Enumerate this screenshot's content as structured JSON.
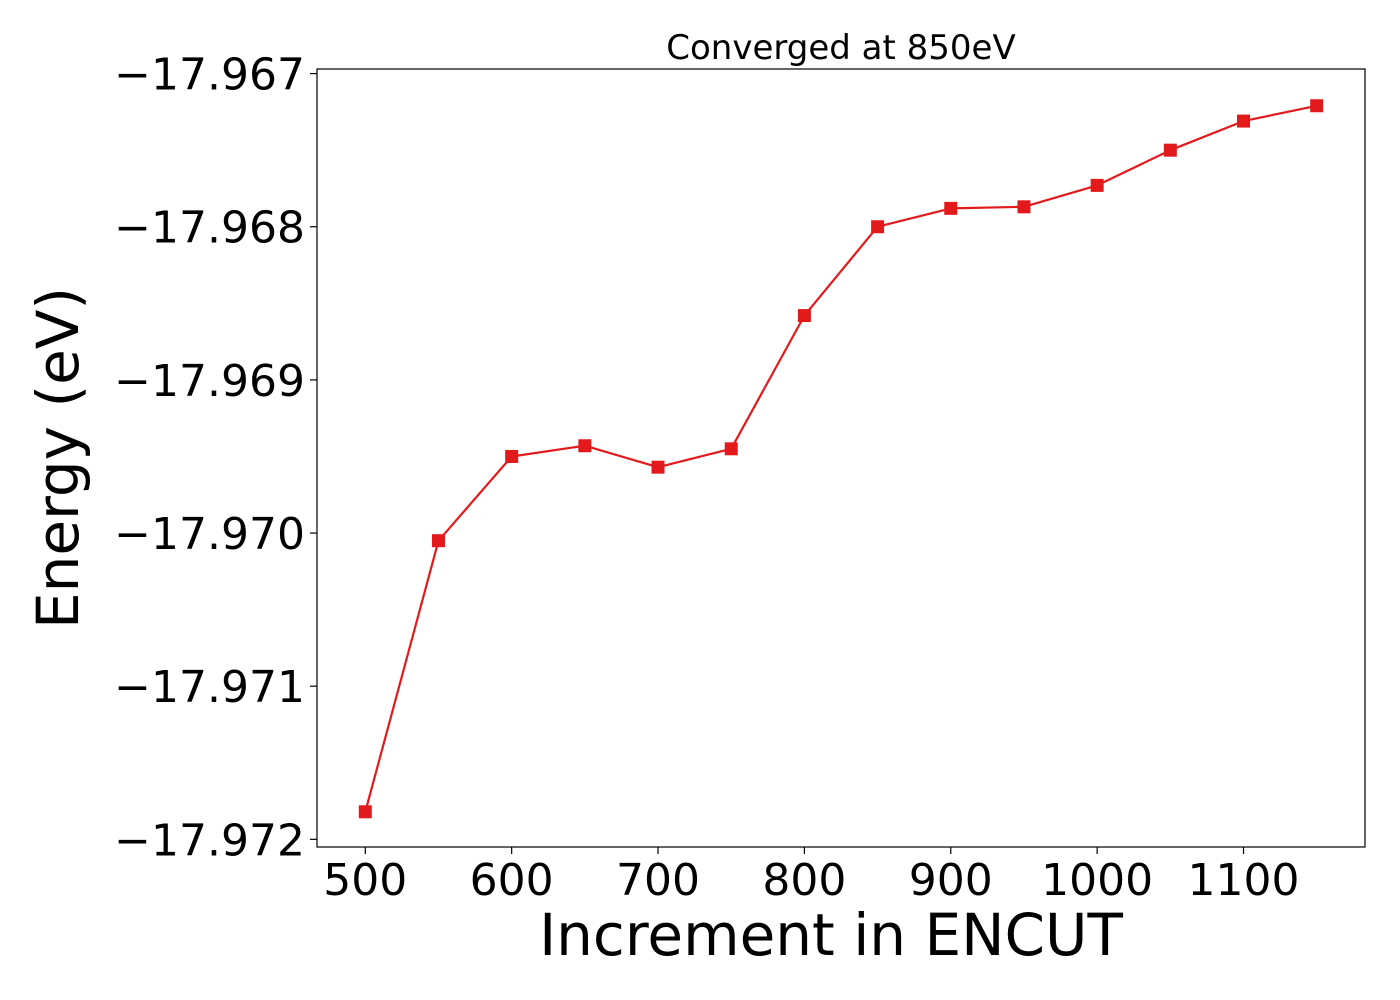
{
  "chart_data": {
    "type": "line",
    "title": "Converged at 850eV",
    "xlabel": "Increment in ENCUT",
    "ylabel": "Energy (eV)",
    "xlim": [
      467,
      1183
    ],
    "ylim": [
      -17.97205,
      -17.96697
    ],
    "x_ticks": [
      500,
      600,
      700,
      800,
      900,
      1000,
      1100
    ],
    "x_tick_labels": [
      "500",
      "600",
      "700",
      "800",
      "900",
      "1000",
      "1100"
    ],
    "y_ticks": [
      -17.967,
      -17.968,
      -17.969,
      -17.97,
      -17.971,
      -17.972
    ],
    "y_tick_labels": [
      "−17.967",
      "−17.968",
      "−17.969",
      "−17.970",
      "−17.971",
      "−17.972"
    ],
    "grid": false,
    "series": [
      {
        "color": "#e31a1c",
        "marker": "square",
        "x": [
          500,
          550,
          600,
          650,
          700,
          750,
          800,
          850,
          900,
          950,
          1000,
          1050,
          1100,
          1150
        ],
        "y": [
          -17.97182,
          -17.97005,
          -17.9695,
          -17.96943,
          -17.96957,
          -17.96945,
          -17.96858,
          -17.968,
          -17.96788,
          -17.96787,
          -17.96773,
          -17.9675,
          -17.96731,
          -17.96721
        ]
      }
    ]
  }
}
